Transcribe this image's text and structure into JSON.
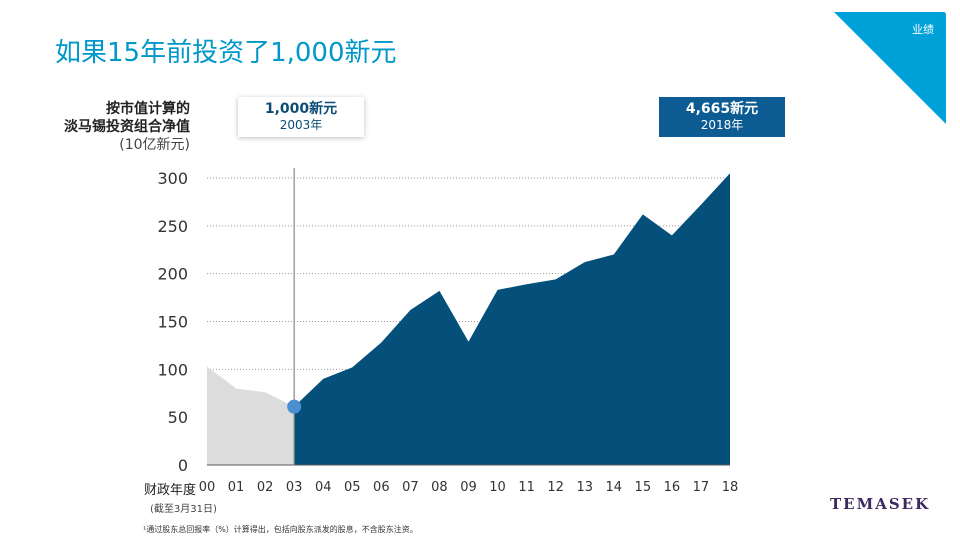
{
  "header": {
    "title": "如果15年前投资了1,000新元",
    "corner_label": "业绩"
  },
  "colors": {
    "title": "#0097c9",
    "area_before": "#dcdcdc",
    "area_after": "#04507a",
    "marker": "#4a8fd0",
    "box_end_bg": "#0c5b92",
    "corner_bg": "#00a0d8"
  },
  "callouts": {
    "start": {
      "value": "1,000新元",
      "year": "2003年"
    },
    "end": {
      "value": "4,665新元",
      "year": "2018年"
    }
  },
  "axis_title": {
    "y_line1": "按市值计算的",
    "y_line2": "淡马锡投资组合净值",
    "y_line3": "(10亿新元)",
    "x_title": "财政年度",
    "x_sub": "(截至3月31日)"
  },
  "footnote": "¹通过股东总回报率（%）计算得出，包括向股东派发的股息，不含股东注资。",
  "logo": "TEMASEK",
  "chart_data": {
    "type": "area",
    "x": [
      "00",
      "01",
      "02",
      "03",
      "04",
      "05",
      "06",
      "07",
      "08",
      "09",
      "10",
      "11",
      "12",
      "13",
      "14",
      "15",
      "16",
      "17",
      "18"
    ],
    "y": [
      103,
      80,
      76,
      61,
      90,
      102,
      128,
      162,
      182,
      129,
      183,
      189,
      194,
      212,
      220,
      262,
      240,
      272,
      305
    ],
    "highlight_start_index": 3,
    "ylim": [
      0,
      300
    ],
    "yticks": [
      0,
      50,
      100,
      150,
      200,
      250,
      300
    ],
    "grid": true
  }
}
